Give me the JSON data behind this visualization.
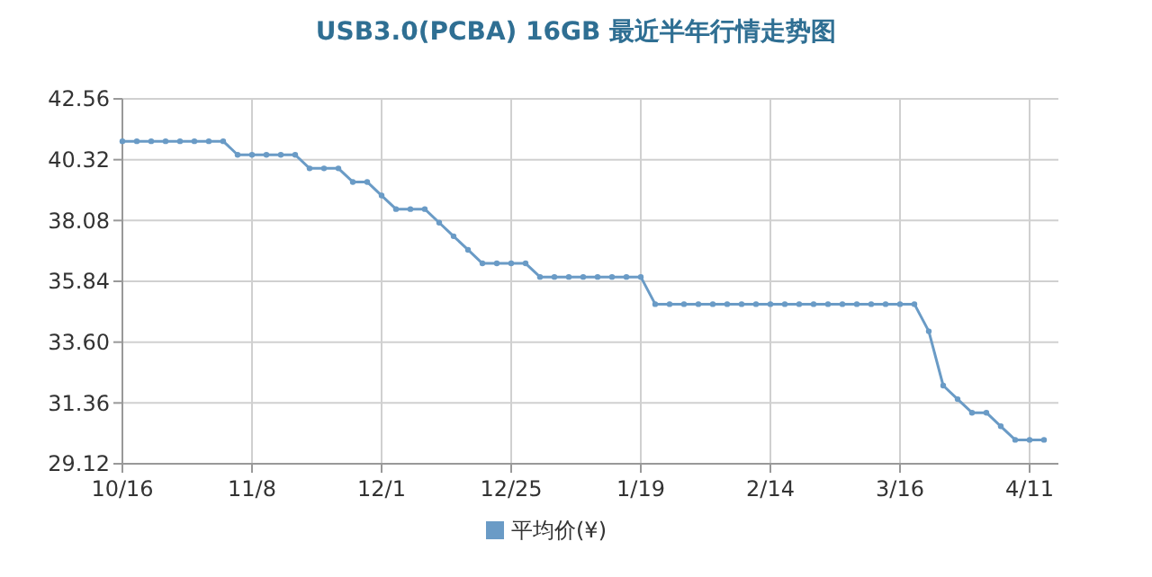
{
  "chart_data": {
    "type": "line",
    "title": "USB3.0(PCBA) 16GB 最近半年行情走势图",
    "categories": [
      "10/16",
      null,
      null,
      null,
      null,
      null,
      null,
      null,
      null,
      "11/8",
      null,
      null,
      null,
      null,
      null,
      null,
      null,
      null,
      "12/1",
      null,
      null,
      null,
      null,
      null,
      null,
      null,
      null,
      "12/25",
      null,
      null,
      null,
      null,
      null,
      null,
      null,
      null,
      "1/19",
      null,
      null,
      null,
      null,
      null,
      null,
      null,
      null,
      "2/14",
      null,
      null,
      null,
      null,
      null,
      null,
      null,
      null,
      "3/16",
      null,
      null,
      null,
      null,
      null,
      null,
      null,
      null,
      "4/11",
      null
    ],
    "series": [
      {
        "name": "平均价(¥)",
        "color": "#6a9bc6",
        "values": [
          41,
          41,
          41,
          41,
          41,
          41,
          41,
          41,
          40.5,
          40.5,
          40.5,
          40.5,
          40.5,
          40,
          40,
          40,
          39.5,
          39.5,
          39,
          38.5,
          38.5,
          38.5,
          38,
          37.5,
          37,
          36.5,
          36.5,
          36.5,
          36.5,
          36,
          36,
          36,
          36,
          36,
          36,
          36,
          36,
          35,
          35,
          35,
          35,
          35,
          35,
          35,
          35,
          35,
          35,
          35,
          35,
          35,
          35,
          35,
          35,
          35,
          35,
          35,
          34,
          32,
          31.5,
          31,
          31,
          30.5,
          30,
          30,
          30
        ]
      }
    ],
    "ylim": [
      29.12,
      42.56
    ],
    "yticks": [
      29.12,
      31.36,
      {
        "value": 33.6,
        "label": "33.60"
      },
      35.84,
      38.08,
      40.32,
      42.56
    ],
    "grid": true,
    "legend": "bottom",
    "marker": "circle",
    "line_style": "solid"
  }
}
